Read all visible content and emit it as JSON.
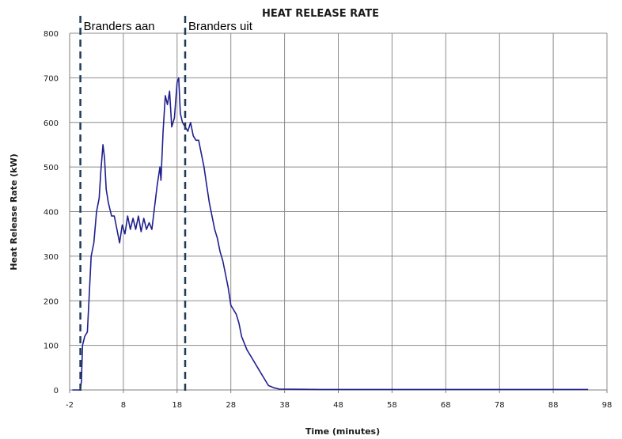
{
  "chart_data": {
    "type": "line",
    "title": "HEAT RELEASE RATE",
    "xlabel": "Time (minutes)",
    "ylabel": "Heat Release Rate (kW)",
    "xlim": [
      -2,
      98
    ],
    "ylim": [
      0,
      800
    ],
    "x_ticks": [
      -2,
      8,
      18,
      28,
      38,
      48,
      58,
      68,
      78,
      88,
      98
    ],
    "y_ticks": [
      0,
      100,
      200,
      300,
      400,
      500,
      600,
      700,
      800
    ],
    "grid": true,
    "colors": {
      "series": "#1f1f8f",
      "markers": "#1f3b5a",
      "grid": "#8c8c8c",
      "axis": "#7f7f7f"
    },
    "series": [
      {
        "values_xy": [
          [
            -1.5,
            0
          ],
          [
            0,
            0
          ],
          [
            0.2,
            20
          ],
          [
            0.4,
            100
          ],
          [
            0.8,
            120
          ],
          [
            1.3,
            130
          ],
          [
            1.6,
            200
          ],
          [
            2.0,
            300
          ],
          [
            2.5,
            330
          ],
          [
            3.0,
            400
          ],
          [
            3.5,
            430
          ],
          [
            3.8,
            490
          ],
          [
            4.2,
            550
          ],
          [
            4.5,
            520
          ],
          [
            4.8,
            450
          ],
          [
            5.2,
            420
          ],
          [
            5.8,
            390
          ],
          [
            6.3,
            390
          ],
          [
            6.8,
            360
          ],
          [
            7.3,
            330
          ],
          [
            7.8,
            370
          ],
          [
            8.3,
            350
          ],
          [
            8.8,
            390
          ],
          [
            9.3,
            360
          ],
          [
            9.8,
            385
          ],
          [
            10.3,
            360
          ],
          [
            10.8,
            390
          ],
          [
            11.3,
            355
          ],
          [
            11.8,
            385
          ],
          [
            12.3,
            360
          ],
          [
            12.8,
            375
          ],
          [
            13.3,
            360
          ],
          [
            13.8,
            410
          ],
          [
            14.3,
            460
          ],
          [
            14.8,
            500
          ],
          [
            15.0,
            470
          ],
          [
            15.4,
            580
          ],
          [
            15.8,
            660
          ],
          [
            16.2,
            640
          ],
          [
            16.6,
            670
          ],
          [
            17.0,
            590
          ],
          [
            17.5,
            610
          ],
          [
            18.0,
            690
          ],
          [
            18.3,
            700
          ],
          [
            18.6,
            620
          ],
          [
            19.0,
            600
          ],
          [
            19.5,
            590
          ],
          [
            20.0,
            580
          ],
          [
            20.5,
            600
          ],
          [
            21.0,
            570
          ],
          [
            21.5,
            560
          ],
          [
            22.0,
            560
          ],
          [
            22.5,
            530
          ],
          [
            23.0,
            500
          ],
          [
            23.5,
            460
          ],
          [
            24.0,
            420
          ],
          [
            24.5,
            390
          ],
          [
            25.0,
            360
          ],
          [
            25.5,
            340
          ],
          [
            26.0,
            310
          ],
          [
            26.5,
            290
          ],
          [
            27.0,
            260
          ],
          [
            27.5,
            230
          ],
          [
            28.0,
            190
          ],
          [
            28.5,
            180
          ],
          [
            29.0,
            170
          ],
          [
            29.5,
            150
          ],
          [
            30.0,
            120
          ],
          [
            31.0,
            90
          ],
          [
            32.0,
            70
          ],
          [
            33.0,
            50
          ],
          [
            34.0,
            30
          ],
          [
            35.0,
            10
          ],
          [
            36.0,
            5
          ],
          [
            37.0,
            2
          ],
          [
            45,
            1
          ],
          [
            60,
            1
          ],
          [
            75,
            1
          ],
          [
            94.5,
            1
          ]
        ]
      }
    ],
    "annotations": [
      {
        "label": "Branders aan",
        "x": 0
      },
      {
        "label": "Branders uit",
        "x": 19.5
      }
    ]
  }
}
